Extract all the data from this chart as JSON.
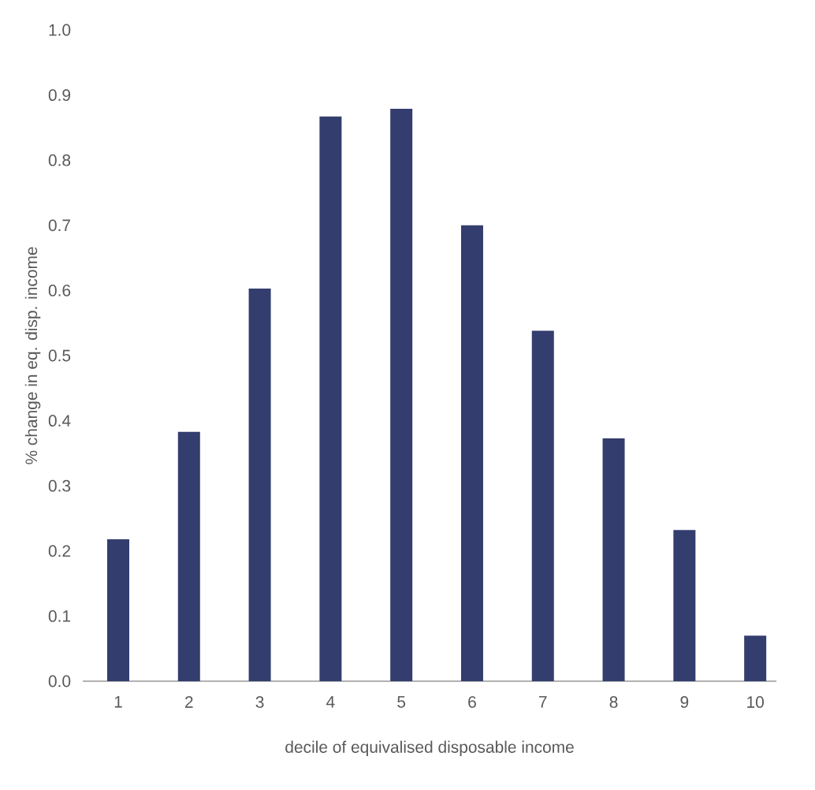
{
  "chart_data": {
    "type": "bar",
    "xlabel": "decile of equivalised disposable income",
    "ylabel": "% change in eq. disp. income",
    "categories": [
      "1",
      "2",
      "3",
      "4",
      "5",
      "6",
      "7",
      "8",
      "9",
      "10"
    ],
    "values": [
      0.218,
      0.383,
      0.603,
      0.867,
      0.879,
      0.7,
      0.538,
      0.373,
      0.232,
      0.07
    ],
    "color": "#333d6e",
    "ylim": [
      0,
      1.0
    ],
    "yticks": [
      {
        "value": 0,
        "label": "0.0"
      },
      0.1,
      0.2,
      0.3,
      0.4,
      0.5,
      0.6,
      0.7,
      0.8,
      0.9,
      {
        "value": 1.0,
        "label": "1.0"
      }
    ],
    "grid": false
  }
}
